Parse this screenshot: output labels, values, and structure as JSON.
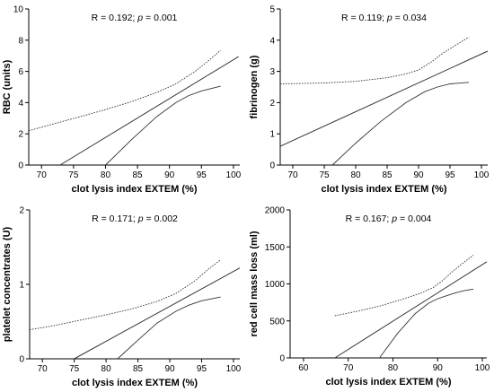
{
  "chart_data": [
    {
      "type": "line",
      "id": "rbc",
      "ylabel": "RBC (units)",
      "xlabel": "clot lysis index EXTEM  (%)",
      "annotation": {
        "pre": "R = 0.192; ",
        "p": "p",
        "post": " = 0.001"
      },
      "xlim": [
        68,
        101
      ],
      "ylim": [
        0,
        10
      ],
      "xticks": [
        70,
        75,
        80,
        85,
        90,
        95,
        100
      ],
      "yticks": [
        0,
        2,
        4,
        6,
        8,
        10
      ],
      "series": [
        {
          "role": "regression",
          "x": [
            72.9,
            100.8
          ],
          "y": [
            0,
            6.95
          ]
        },
        {
          "role": "ci-upper",
          "x": [
            68,
            72,
            76,
            80,
            84,
            88,
            91,
            94,
            96,
            98
          ],
          "y": [
            2.2,
            2.65,
            3.1,
            3.55,
            4.05,
            4.65,
            5.2,
            6.0,
            6.65,
            7.35
          ]
        },
        {
          "role": "ci-lower",
          "x": [
            80,
            84,
            88,
            91,
            93,
            95,
            98
          ],
          "y": [
            0,
            1.6,
            3.1,
            4.0,
            4.45,
            4.75,
            5.05
          ]
        }
      ]
    },
    {
      "type": "line",
      "id": "fibrinogen",
      "ylabel": "fibrinogen (g)",
      "xlabel": "clot lysis index EXTEM (%)",
      "annotation": {
        "pre": "R = 0.119; ",
        "p": "p",
        "post": " = 0.034"
      },
      "xlim": [
        68,
        101
      ],
      "ylim": [
        0,
        5
      ],
      "xticks": [
        70,
        75,
        80,
        85,
        90,
        95,
        100
      ],
      "yticks": [
        0,
        1,
        2,
        3,
        4,
        5
      ],
      "series": [
        {
          "role": "regression",
          "x": [
            68,
            101
          ],
          "y": [
            0.6,
            3.65
          ]
        },
        {
          "role": "ci-upper",
          "x": [
            68,
            75,
            80,
            85,
            88,
            90,
            92,
            94,
            96,
            98
          ],
          "y": [
            2.6,
            2.63,
            2.68,
            2.8,
            2.92,
            3.05,
            3.3,
            3.6,
            3.85,
            4.1
          ]
        },
        {
          "role": "ci-lower",
          "x": [
            76.3,
            80,
            84,
            88,
            91,
            93,
            95,
            98
          ],
          "y": [
            0,
            0.7,
            1.4,
            2.0,
            2.35,
            2.5,
            2.6,
            2.65
          ]
        }
      ]
    },
    {
      "type": "line",
      "id": "platelet",
      "ylabel": "platelet concentrates (U)",
      "xlabel": "clot lysis index EXTEM (%)",
      "annotation": {
        "pre": "R = 0.171; ",
        "p": "p",
        "post": " = 0.002"
      },
      "xlim": [
        68,
        101
      ],
      "ylim": [
        0,
        2
      ],
      "xticks": [
        70,
        75,
        80,
        85,
        90,
        95,
        100
      ],
      "yticks": [
        0,
        1,
        2
      ],
      "series": [
        {
          "role": "regression",
          "x": [
            75.0,
            101
          ],
          "y": [
            0,
            1.22
          ]
        },
        {
          "role": "ci-upper",
          "x": [
            68,
            72,
            76,
            80,
            84,
            88,
            91,
            94,
            96,
            98
          ],
          "y": [
            0.39,
            0.45,
            0.52,
            0.59,
            0.67,
            0.77,
            0.88,
            1.05,
            1.2,
            1.33
          ]
        },
        {
          "role": "ci-lower",
          "x": [
            81.8,
            85,
            88,
            91,
            93,
            95,
            98
          ],
          "y": [
            0,
            0.25,
            0.48,
            0.64,
            0.72,
            0.78,
            0.83
          ]
        }
      ]
    },
    {
      "type": "line",
      "id": "red-cell-mass",
      "ylabel": "red cell mass loss (ml)",
      "xlabel": "clot lysis index EXTEM (%)",
      "annotation": {
        "pre": "R = 0.167; ",
        "p": "p",
        "post": " = 0.004"
      },
      "xlim": [
        57,
        101
      ],
      "ylim": [
        0,
        2000
      ],
      "xticks": [
        60,
        70,
        80,
        90,
        100
      ],
      "yticks": [
        0,
        500,
        1000,
        1500,
        2000
      ],
      "series": [
        {
          "role": "regression",
          "x": [
            67.0,
            101
          ],
          "y": [
            0,
            1300
          ]
        },
        {
          "role": "ci-upper",
          "x": [
            67,
            72,
            77,
            82,
            86,
            89,
            91,
            93,
            95,
            98
          ],
          "y": [
            570,
            630,
            700,
            790,
            870,
            950,
            1040,
            1150,
            1250,
            1390
          ]
        },
        {
          "role": "ci-lower",
          "x": [
            77,
            81,
            85,
            88,
            90,
            92,
            94,
            96,
            98
          ],
          "y": [
            0,
            330,
            600,
            740,
            800,
            840,
            880,
            910,
            930
          ]
        }
      ]
    }
  ]
}
